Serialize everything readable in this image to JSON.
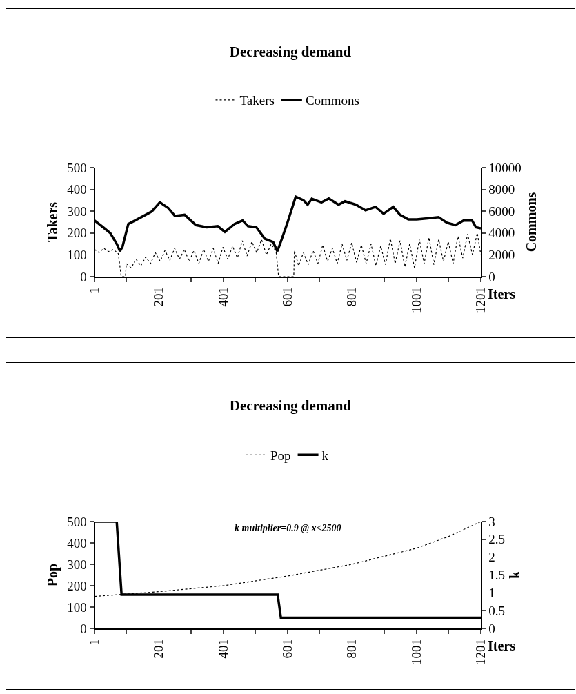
{
  "chart_data": [
    {
      "type": "line",
      "title": "Decreasing demand",
      "xlabel": "Iters",
      "ylabel": "Takers",
      "y2label": "Commons",
      "legend": "top",
      "grid": false,
      "marker": "none",
      "xlim": [
        1,
        1201
      ],
      "xticks": [
        1,
        {
          "value": 101,
          "label": null
        },
        201,
        {
          "value": 301,
          "label": null
        },
        401,
        {
          "value": 501,
          "label": null
        },
        601,
        {
          "value": 701,
          "label": null
        },
        801,
        {
          "value": 901,
          "label": null
        },
        1001,
        {
          "value": 1101,
          "label": null
        },
        1201
      ],
      "ylim": [
        0,
        500
      ],
      "yticks": [
        0,
        100,
        200,
        300,
        400,
        500
      ],
      "y2lim": [
        0,
        10000
      ],
      "y2ticks": [
        0,
        2000,
        4000,
        6000,
        8000,
        10000
      ],
      "series": [
        {
          "name": "Takers",
          "color": "#000000",
          "line_style": "dotted",
          "x": [
            1,
            15,
            30,
            45,
            60,
            75,
            84,
            97,
            100,
            115,
            130,
            145,
            160,
            175,
            190,
            205,
            220,
            235,
            250,
            265,
            280,
            295,
            310,
            325,
            340,
            355,
            370,
            385,
            400,
            415,
            430,
            445,
            460,
            475,
            490,
            505,
            520,
            535,
            550,
            565,
            573,
            620,
            622,
            635,
            650,
            665,
            680,
            695,
            710,
            725,
            740,
            755,
            770,
            785,
            800,
            815,
            830,
            845,
            860,
            875,
            890,
            905,
            920,
            935,
            950,
            965,
            980,
            995,
            1010,
            1025,
            1040,
            1055,
            1070,
            1085,
            1100,
            1115,
            1130,
            1145,
            1160,
            1175,
            1190,
            1201
          ],
          "values": [
            125,
            110,
            130,
            115,
            125,
            105,
            0,
            0,
            60,
            40,
            80,
            50,
            90,
            60,
            110,
            70,
            120,
            75,
            130,
            80,
            125,
            70,
            120,
            60,
            125,
            70,
            130,
            60,
            135,
            80,
            140,
            85,
            165,
            95,
            160,
            110,
            170,
            100,
            150,
            115,
            0,
            0,
            120,
            50,
            110,
            55,
            120,
            60,
            145,
            70,
            130,
            60,
            150,
            75,
            155,
            65,
            145,
            60,
            150,
            50,
            140,
            55,
            175,
            60,
            165,
            45,
            150,
            40,
            170,
            60,
            180,
            55,
            170,
            70,
            160,
            60,
            185,
            85,
            195,
            100,
            200,
            100
          ]
        },
        {
          "name": "Commons",
          "color": "#000000",
          "line_style": "solid",
          "axis": "y2",
          "x": [
            1,
            24,
            50,
            71,
            80,
            88,
            106,
            127,
            153,
            179,
            204,
            230,
            251,
            281,
            316,
            350,
            384,
            406,
            436,
            461,
            478,
            504,
            530,
            556,
            569,
            582,
            599,
            626,
            650,
            663,
            676,
            706,
            729,
            759,
            779,
            813,
            843,
            874,
            899,
            929,
            950,
            976,
            1002,
            1036,
            1070,
            1096,
            1122,
            1147,
            1174,
            1186,
            1201
          ],
          "values": [
            5150,
            4620,
            4000,
            2960,
            2330,
            2750,
            4830,
            5150,
            5560,
            5980,
            6810,
            6290,
            5560,
            5670,
            4730,
            4520,
            4630,
            4100,
            4830,
            5150,
            4630,
            4520,
            3480,
            3170,
            2330,
            3380,
            4830,
            7330,
            7020,
            6600,
            7150,
            6810,
            7170,
            6600,
            6920,
            6600,
            6080,
            6400,
            5770,
            6400,
            5670,
            5250,
            5250,
            5350,
            5460,
            4940,
            4730,
            5150,
            5150,
            4520,
            4420
          ]
        }
      ]
    },
    {
      "type": "line",
      "title": "Decreasing demand",
      "xlabel": "Iters",
      "ylabel": "Pop",
      "y2label": "k",
      "legend": "top",
      "grid": false,
      "marker": "none",
      "annotations": [
        "k multiplier=0.9 @ x<2500"
      ],
      "xlim": [
        1,
        1201
      ],
      "xticks": [
        1,
        {
          "value": 101,
          "label": null
        },
        201,
        {
          "value": 301,
          "label": null
        },
        401,
        {
          "value": 501,
          "label": null
        },
        601,
        {
          "value": 701,
          "label": null
        },
        801,
        {
          "value": 901,
          "label": null
        },
        1001,
        {
          "value": 1101,
          "label": null
        },
        1201
      ],
      "ylim": [
        0,
        500
      ],
      "yticks": [
        0,
        100,
        200,
        300,
        400,
        500
      ],
      "y2lim": [
        0,
        3
      ],
      "y2ticks": [
        0,
        0.5,
        1,
        1.5,
        2,
        2.5,
        3
      ],
      "series": [
        {
          "name": "Pop",
          "color": "#000000",
          "line_style": "dotted",
          "x": [
            1,
            201,
            401,
            601,
            801,
            1001,
            1101,
            1201
          ],
          "values": [
            150,
            172,
            200,
            245,
            300,
            375,
            430,
            500
          ]
        },
        {
          "name": "k",
          "color": "#000000",
          "line_style": "solid",
          "axis": "y2",
          "x": [
            1,
            70,
            85,
            570,
            580,
            1201
          ],
          "values": [
            3,
            3,
            0.95,
            0.95,
            0.3,
            0.3
          ]
        }
      ]
    }
  ]
}
